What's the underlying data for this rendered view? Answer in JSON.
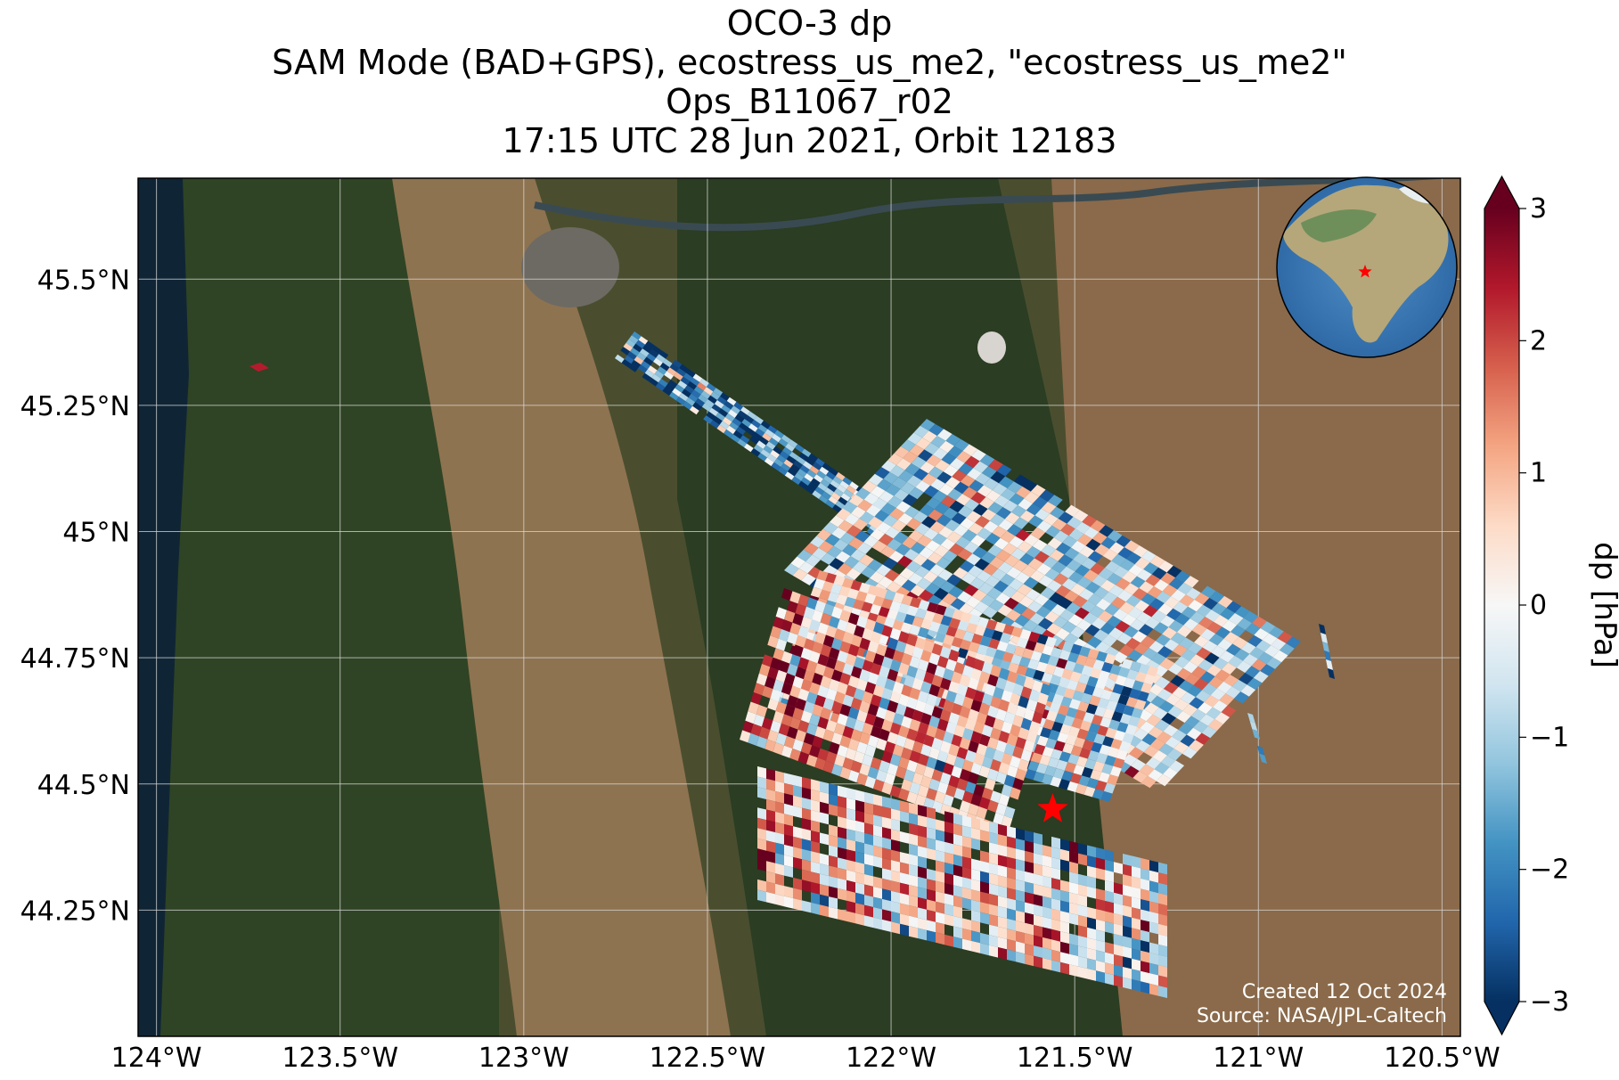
{
  "title": {
    "lines": [
      "OCO-3 dp",
      "SAM Mode (BAD+GPS), ecostress_us_me2, \"ecostress_us_me2\"",
      "Ops_B11067_r02",
      "17:15 UTC 28 Jun 2021, Orbit 12183"
    ]
  },
  "credits": {
    "created": "Created 12 Oct 2024",
    "source": "Source: NASA/JPL-Caltech"
  },
  "colorbar": {
    "label": "dp [hPa]",
    "range": [
      -3,
      3
    ],
    "ticks": [
      "3",
      "2",
      "1",
      "0",
      "−1",
      "−2",
      "−3"
    ],
    "tick_values": [
      3,
      2,
      1,
      0,
      -1,
      -2,
      -3
    ],
    "extend": "both",
    "colormap": "RdBu_r",
    "colors": [
      "#053061",
      "#2166ac",
      "#4393c3",
      "#92c5de",
      "#d1e5f0",
      "#f7f7f7",
      "#fddbc7",
      "#f4a582",
      "#d6604d",
      "#b2182b",
      "#67001f"
    ]
  },
  "map": {
    "lon_range": [
      -124.05,
      -120.45
    ],
    "lat_range": [
      44.0,
      45.7
    ],
    "lon_ticks": [
      -124,
      -123.5,
      -123,
      -122.5,
      -122,
      -121.5,
      -121,
      -120.5
    ],
    "lon_tick_labels": [
      "124°W",
      "123.5°W",
      "123°W",
      "122.5°W",
      "122°W",
      "121.5°W",
      "121°W",
      "120.5°W"
    ],
    "lat_ticks": [
      45.5,
      45.25,
      45.0,
      44.75,
      44.5,
      44.25
    ],
    "lat_tick_labels": [
      "45.5°N",
      "45.25°N",
      "45°N",
      "44.75°N",
      "44.5°N",
      "44.25°N"
    ],
    "gridlines": true,
    "target_marker": {
      "lon": -121.56,
      "lat": 44.45,
      "color": "#ff0000",
      "shape": "star"
    },
    "inset_globe": {
      "placement": "top-right",
      "marker_color": "#ff0000",
      "marker_shape": "star"
    }
  }
}
